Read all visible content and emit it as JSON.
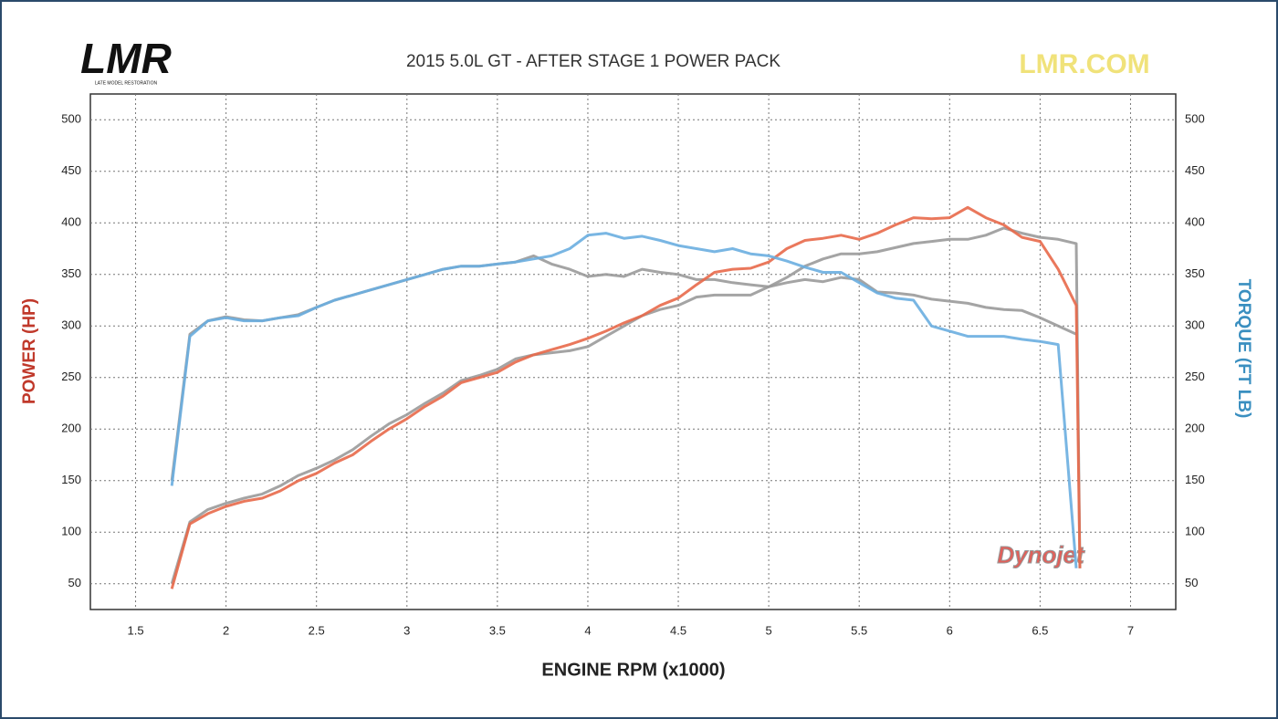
{
  "chart_data": {
    "type": "line",
    "title": "2015 5.0L GT - AFTER STAGE 1 POWER PACK",
    "logo": "LMR",
    "logo_subtitle": "LATE MODEL RESTORATION",
    "website": "LMR.COM",
    "dyno_brand": "Dynojet",
    "x_label": "ENGINE RPM (x1000)",
    "y_label": "POWER (HP)",
    "y2_label": "TORQUE (FT LB)",
    "xlim": [
      1.25,
      7.25
    ],
    "xticks": [
      1.5,
      2,
      2.5,
      3,
      3.5,
      4,
      4.5,
      5,
      5.5,
      6,
      6.5,
      7
    ],
    "ylim": [
      25,
      525
    ],
    "yticks": [
      50,
      100,
      150,
      200,
      250,
      300,
      350,
      400,
      450,
      500
    ],
    "y2lim": [
      25,
      525
    ],
    "y2ticks": [
      50,
      100,
      150,
      200,
      250,
      300,
      350,
      400,
      450,
      500
    ],
    "grid": true,
    "x": [
      1.7,
      1.8,
      1.9,
      2.0,
      2.1,
      2.2,
      2.3,
      2.4,
      2.5,
      2.6,
      2.7,
      2.8,
      2.9,
      3.0,
      3.1,
      3.2,
      3.3,
      3.4,
      3.5,
      3.6,
      3.7,
      3.8,
      3.9,
      4.0,
      4.1,
      4.2,
      4.3,
      4.4,
      4.5,
      4.6,
      4.7,
      4.8,
      4.9,
      5.0,
      5.1,
      5.2,
      5.3,
      5.4,
      5.5,
      5.6,
      5.7,
      5.8,
      5.9,
      6.0,
      6.1,
      6.2,
      6.3,
      6.4,
      6.5,
      6.6,
      6.7,
      6.72
    ],
    "series": [
      {
        "color": "#9a9a9a",
        "values": [
          50,
          110,
          122,
          128,
          133,
          137,
          145,
          155,
          162,
          170,
          180,
          193,
          205,
          214,
          225,
          235,
          247,
          252,
          258,
          268,
          272,
          274,
          276,
          280,
          290,
          300,
          310,
          316,
          320,
          328,
          330,
          330,
          330,
          338,
          347,
          358,
          365,
          370,
          370,
          372,
          376,
          380,
          382,
          384,
          384,
          388,
          395,
          390,
          386,
          384,
          380,
          65
        ]
      },
      {
        "color": "#9a9a9a",
        "axis": "y2",
        "values": [
          150,
          292,
          305,
          309,
          306,
          305,
          308,
          311,
          318,
          325,
          330,
          335,
          340,
          345,
          350,
          355,
          358,
          358,
          360,
          362,
          368,
          360,
          355,
          348,
          350,
          348,
          355,
          352,
          350,
          345,
          345,
          342,
          340,
          338,
          342,
          345,
          343,
          347,
          345,
          333,
          332,
          330,
          326,
          324,
          322,
          318,
          316,
          315,
          308,
          300,
          292,
          null
        ]
      },
      {
        "color": "#e8694a",
        "values": [
          45,
          108,
          118,
          125,
          130,
          133,
          140,
          150,
          157,
          167,
          175,
          188,
          200,
          210,
          222,
          232,
          245,
          250,
          255,
          265,
          272,
          277,
          282,
          288,
          295,
          303,
          310,
          320,
          327,
          340,
          352,
          355,
          356,
          362,
          375,
          383,
          385,
          388,
          384,
          390,
          398,
          405,
          404,
          405,
          415,
          405,
          398,
          386,
          382,
          355,
          320,
          65
        ]
      },
      {
        "color": "#6aaee0",
        "axis": "y2",
        "values": [
          145,
          290,
          305,
          308,
          305,
          305,
          308,
          310,
          318,
          325,
          330,
          335,
          340,
          345,
          350,
          355,
          358,
          358,
          360,
          362,
          365,
          368,
          375,
          388,
          390,
          385,
          387,
          383,
          378,
          375,
          372,
          375,
          370,
          368,
          363,
          357,
          352,
          352,
          342,
          332,
          327,
          325,
          300,
          295,
          290,
          290,
          290,
          287,
          285,
          282,
          65,
          null
        ]
      }
    ]
  }
}
